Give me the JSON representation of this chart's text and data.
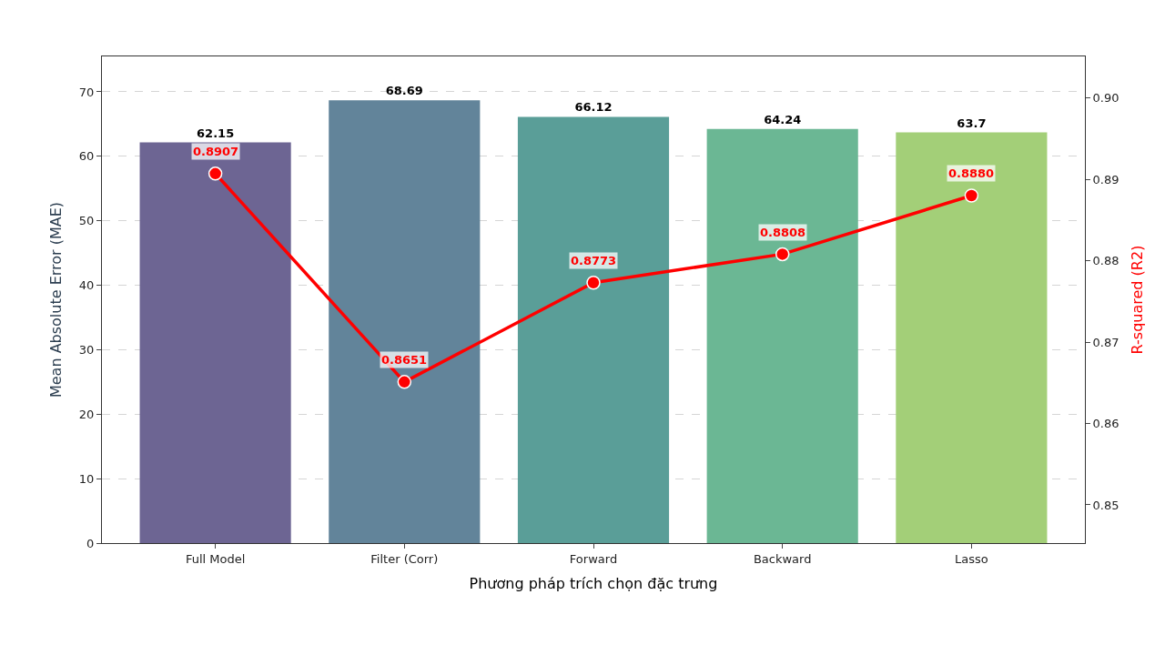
{
  "chart_data": {
    "type": "bar",
    "xlabel": "Phương pháp trích chọn đặc trưng",
    "ylabel": "Mean Absolute Error (MAE)",
    "y2label": "R-squared (R2)",
    "categories": [
      "Full Model",
      "Filter (Corr)",
      "Forward",
      "Backward",
      "Lasso"
    ],
    "series": [
      {
        "colors": [
          "#6d6593",
          "#62849a",
          "#5a9e98",
          "#6bb794",
          "#a3cf78"
        ],
        "values": [
          62.15,
          68.69,
          66.12,
          64.24,
          63.7
        ]
      },
      {
        "type": "line",
        "axis": "y2",
        "color": "#ff0000",
        "marker": "circle",
        "values": [
          0.8907,
          0.8651,
          0.8773,
          0.8808,
          0.888
        ],
        "value_labels": [
          "0.8907",
          "0.8651",
          "0.8773",
          "0.8808",
          "0.8880"
        ]
      }
    ],
    "data_labels": true,
    "ylim": [
      0,
      75.5
    ],
    "yticks": [
      0,
      10,
      20,
      30,
      40,
      50,
      60,
      70
    ],
    "y2lim": [
      0.8453,
      0.9051
    ],
    "y2ticks": [
      0.85,
      0.86,
      0.87,
      0.88,
      0.89,
      {
        "value": 0.9,
        "label": "0.90"
      }
    ],
    "grid": "y"
  }
}
